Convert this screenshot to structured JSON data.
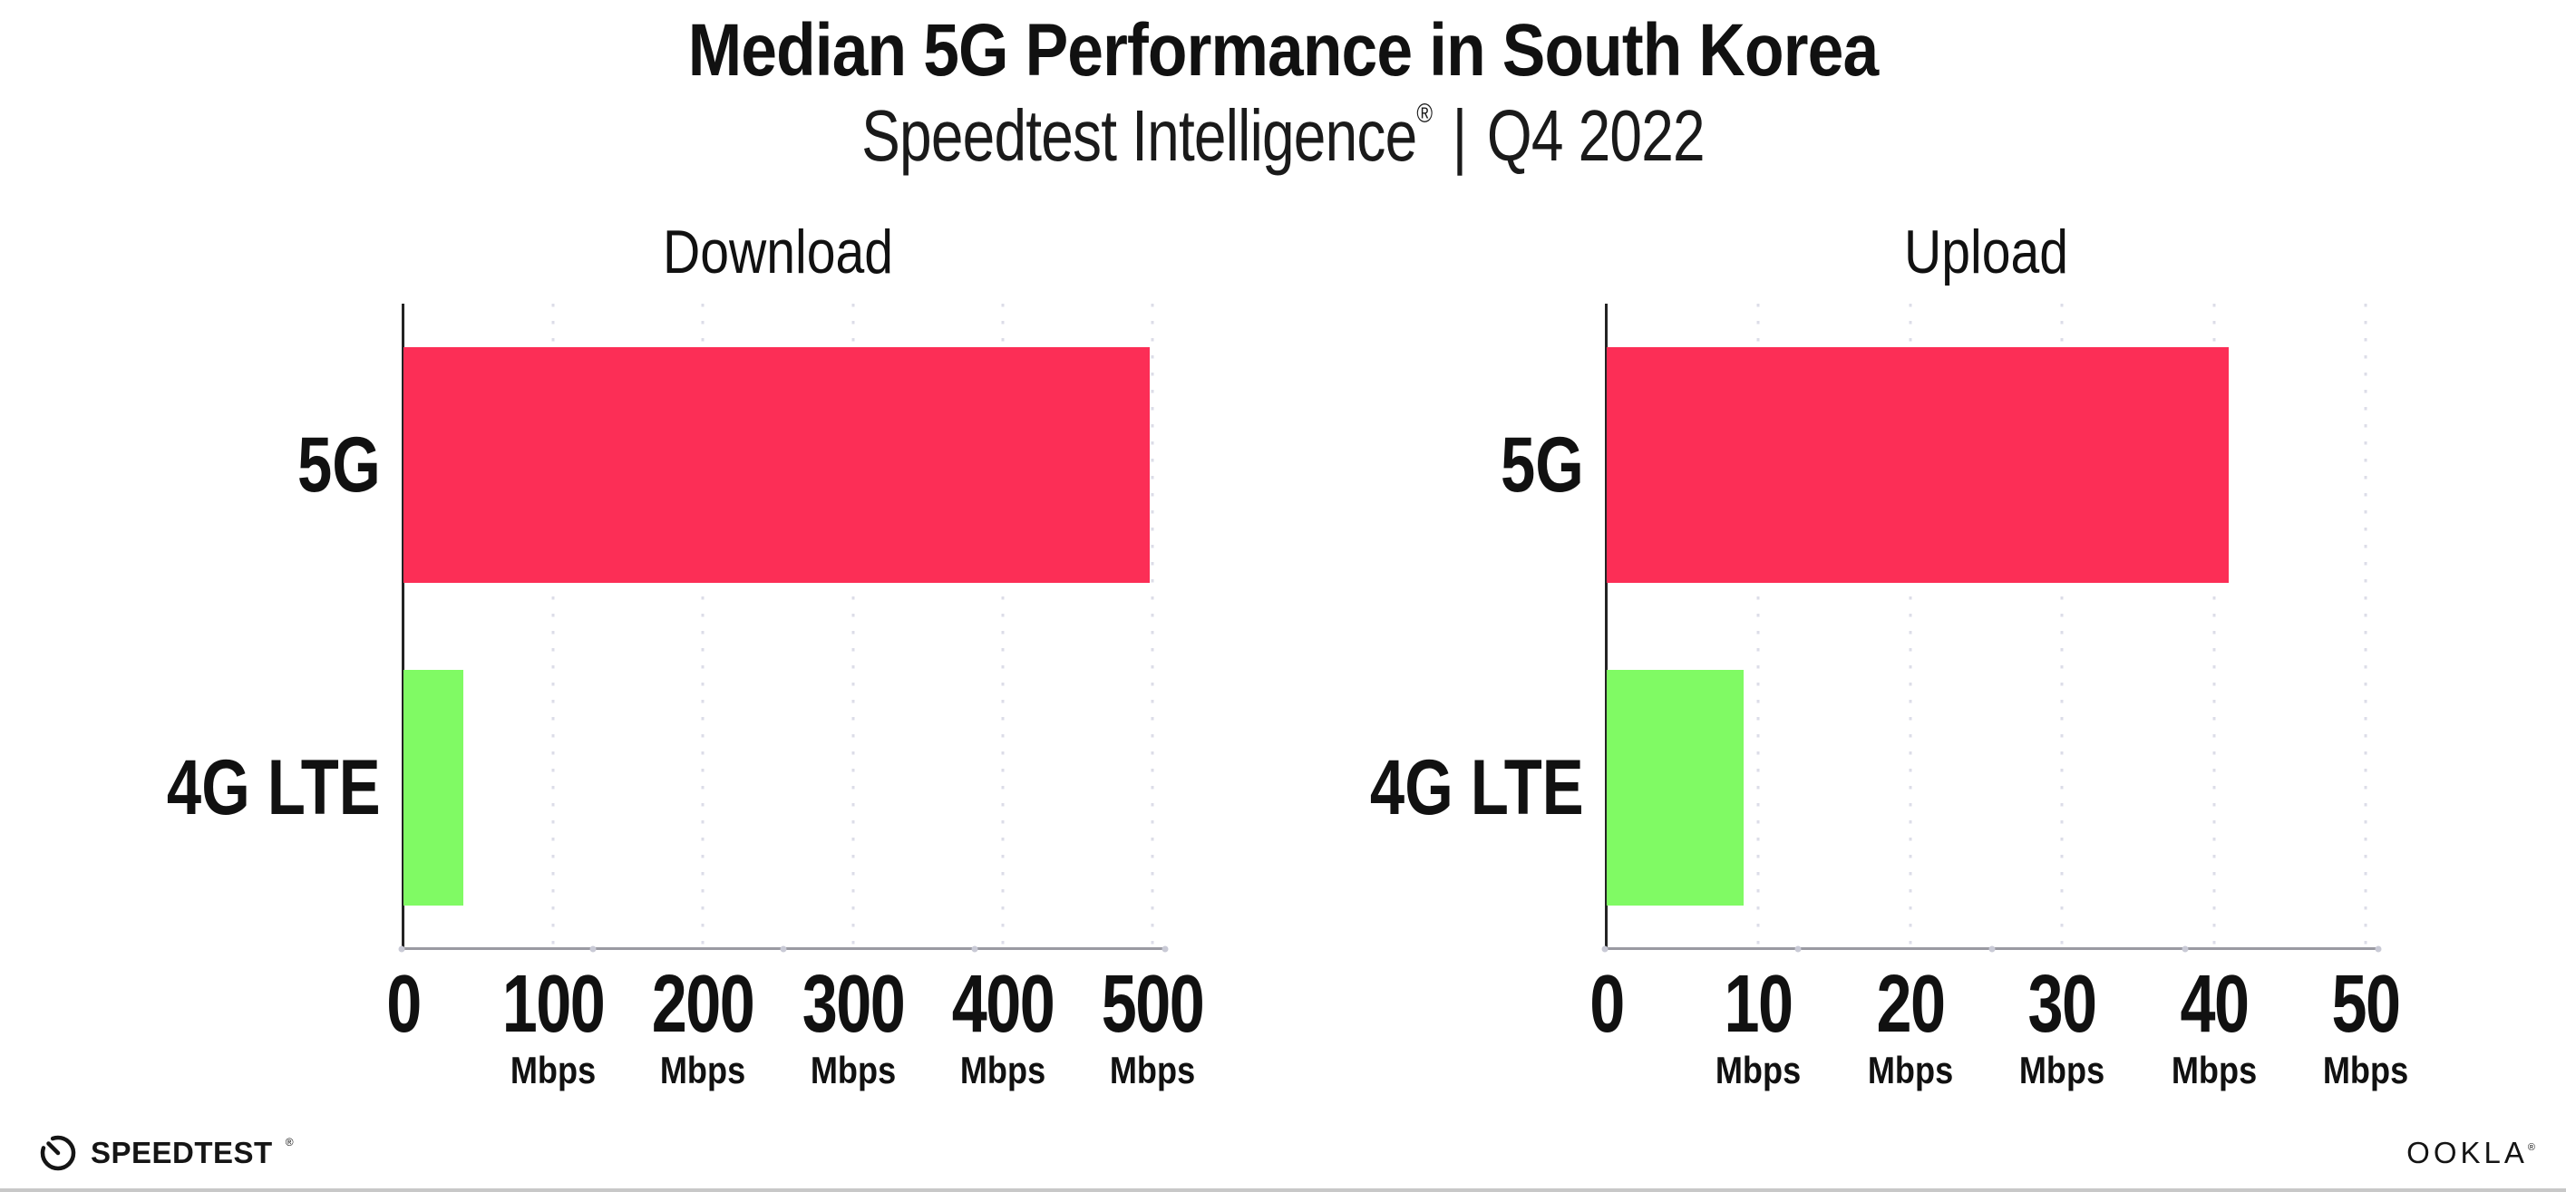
{
  "header": {
    "title": "Median 5G Performance in South Korea",
    "subtitle": {
      "brand": "Speedtest Intelligence",
      "registered_mark": "®",
      "separator": "|",
      "period": "Q4 2022"
    }
  },
  "chart_data": [
    {
      "type": "bar",
      "orientation": "horizontal",
      "title": "Download",
      "categories": [
        "5G",
        "4G LTE"
      ],
      "values": [
        498,
        40
      ],
      "unit": "Mbps",
      "xlim": [
        0,
        500
      ],
      "xticks": [
        0,
        100,
        200,
        300,
        400,
        500
      ],
      "tick_unit": "Mbps",
      "show_unit_on_zero": false,
      "bar_colors": [
        "#fc2e56",
        "#80fa64"
      ],
      "grid": "vertical-dotted",
      "legend": false
    },
    {
      "type": "bar",
      "orientation": "horizontal",
      "title": "Upload",
      "categories": [
        "5G",
        "4G LTE"
      ],
      "values": [
        41,
        9
      ],
      "unit": "Mbps",
      "xlim": [
        0,
        50
      ],
      "xticks": [
        0,
        10,
        20,
        30,
        40,
        50
      ],
      "tick_unit": "Mbps",
      "show_unit_on_zero": false,
      "bar_colors": [
        "#fc2e56",
        "#80fa64"
      ],
      "grid": "vertical-dotted",
      "legend": false
    }
  ],
  "footer": {
    "speedtest_wordmark": "SPEEDTEST",
    "speedtest_registered_mark": "®",
    "ookla_wordmark": "OOKLA",
    "ookla_registered_mark": "®"
  },
  "colors": {
    "bar_5g": "#fc2e56",
    "bar_4g_lte": "#80fa64",
    "gridline": "#dcdde8",
    "x_axis_line": "#9a9aa2",
    "y_axis_line": "#232323",
    "axis_tick_dot": "#c9cad6",
    "text": "#111111",
    "bottom_border": "#c8c8c8"
  }
}
